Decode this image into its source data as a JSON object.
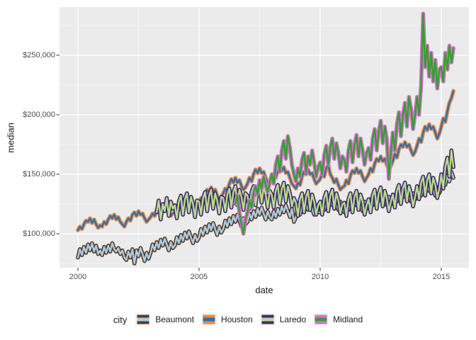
{
  "chart_data": {
    "type": "line",
    "title": "",
    "xlabel": "date",
    "ylabel": "median",
    "x_axis": {
      "ticks": [
        {
          "value": 2000,
          "label": "2000"
        },
        {
          "value": 2005,
          "label": "2005"
        },
        {
          "value": 2010,
          "label": "2010"
        },
        {
          "value": 2015,
          "label": "2015"
        }
      ],
      "minor_ticks": [
        2002.5,
        2007.5,
        2012.5
      ],
      "domain": [
        1999.24,
        2016.14
      ]
    },
    "y_axis": {
      "ticks": [
        {
          "value_kusd": 100,
          "label": "$100,000"
        },
        {
          "value_kusd": 150,
          "label": "$150,000"
        },
        {
          "value_kusd": 200,
          "label": "$200,000"
        },
        {
          "value_kusd": 250,
          "label": "$250,000"
        }
      ],
      "minor_ticks_kusd": [
        75,
        125,
        175,
        225,
        275
      ],
      "domain_kusd": [
        71,
        290
      ]
    },
    "legend": {
      "title": "city",
      "position": "bottom"
    },
    "unit": "values_kusd are monthly median sale price in thousands of USD",
    "frequency": "monthly",
    "series": [
      {
        "name": "Beaumont",
        "line_color": "#A9CFE5",
        "outline_color": "#5A3A25",
        "start_year": 2000.0,
        "values_kusd": [
          80,
          87,
          82,
          89,
          84,
          91,
          86,
          92,
          85,
          90,
          83,
          86,
          82,
          89,
          84,
          90,
          85,
          92,
          87,
          85,
          88,
          83,
          86,
          80,
          78,
          85,
          80,
          87,
          75,
          86,
          81,
          88,
          83,
          77,
          84,
          79,
          84,
          91,
          86,
          93,
          88,
          95,
          90,
          96,
          91,
          86,
          93,
          88,
          90,
          97,
          92,
          99,
          94,
          101,
          96,
          102,
          97,
          92,
          99,
          94,
          97,
          104,
          99,
          106,
          101,
          108,
          103,
          109,
          104,
          99,
          106,
          101,
          104,
          111,
          106,
          113,
          108,
          115,
          110,
          116,
          111,
          106,
          113,
          108,
          110,
          117,
          112,
          119,
          114,
          121,
          116,
          122,
          117,
          112,
          119,
          114,
          112,
          119,
          114,
          121,
          116,
          123,
          118,
          124,
          119,
          114,
          121,
          110,
          114,
          121,
          116,
          123,
          118,
          125,
          120,
          126,
          121,
          116,
          123,
          118,
          118,
          125,
          120,
          127,
          122,
          129,
          124,
          130,
          125,
          120,
          127,
          122,
          118,
          126,
          120,
          128,
          122,
          130,
          124,
          131,
          125,
          119,
          127,
          121,
          122,
          129,
          124,
          131,
          126,
          133,
          128,
          134,
          129,
          124,
          131,
          126,
          125,
          132,
          127,
          134,
          129,
          136,
          131,
          137,
          132,
          127,
          134,
          129,
          130,
          137,
          132,
          139,
          134,
          141,
          136,
          142,
          137,
          132,
          139,
          134,
          138,
          146,
          141,
          149,
          144,
          152,
          147
        ]
      },
      {
        "name": "Houston",
        "line_color": "#2F6FAD",
        "outline_color": "#E68A45",
        "start_year": 2000.0,
        "values_kusd": [
          103,
          106,
          104,
          108,
          111,
          110,
          113,
          109,
          112,
          108,
          105,
          107,
          106,
          110,
          108,
          112,
          115,
          113,
          116,
          112,
          114,
          110,
          108,
          106,
          110,
          113,
          111,
          116,
          118,
          115,
          119,
          116,
          117,
          113,
          110,
          112,
          114,
          117,
          115,
          120,
          123,
          121,
          124,
          120,
          122,
          118,
          115,
          117,
          118,
          122,
          120,
          126,
          129,
          127,
          131,
          127,
          129,
          124,
          121,
          123,
          126,
          130,
          128,
          134,
          137,
          135,
          139,
          135,
          137,
          132,
          129,
          131,
          134,
          138,
          136,
          142,
          146,
          143,
          147,
          143,
          145,
          140,
          137,
          139,
          142,
          147,
          144,
          150,
          154,
          151,
          155,
          151,
          152,
          147,
          143,
          145,
          145,
          150,
          147,
          153,
          156,
          153,
          156,
          151,
          152,
          147,
          142,
          140,
          138,
          143,
          141,
          148,
          152,
          150,
          154,
          150,
          151,
          146,
          142,
          144,
          146,
          151,
          148,
          155,
          158,
          150,
          147,
          143,
          146,
          141,
          137,
          139,
          140,
          145,
          142,
          149,
          153,
          151,
          155,
          151,
          153,
          148,
          144,
          147,
          150,
          155,
          152,
          159,
          163,
          161,
          165,
          161,
          163,
          158,
          154,
          157,
          161,
          167,
          164,
          171,
          175,
          173,
          177,
          173,
          175,
          170,
          166,
          169,
          174,
          180,
          177,
          185,
          190,
          187,
          192,
          188,
          190,
          185,
          180,
          184,
          190,
          197,
          194,
          203,
          210,
          214,
          220
        ]
      },
      {
        "name": "Laredo",
        "line_color": "#B2DF8A",
        "outline_color": "#45276D",
        "start_year": 2003.25,
        "values_kusd": [
          118,
          128,
          112,
          125,
          119,
          130,
          115,
          127,
          121,
          124,
          113,
          127,
          132,
          116,
          129,
          134,
          118,
          131,
          125,
          114,
          128,
          127,
          116,
          130,
          135,
          119,
          132,
          137,
          121,
          134,
          128,
          117,
          131,
          130,
          119,
          133,
          138,
          122,
          135,
          140,
          124,
          137,
          131,
          120,
          134,
          132,
          121,
          135,
          140,
          124,
          137,
          142,
          126,
          139,
          133,
          122,
          136,
          133,
          122,
          136,
          141,
          125,
          138,
          143,
          127,
          140,
          134,
          123,
          130,
          126,
          115,
          129,
          134,
          118,
          131,
          136,
          120,
          133,
          127,
          116,
          124,
          127,
          116,
          130,
          135,
          119,
          132,
          137,
          121,
          134,
          128,
          117,
          125,
          126,
          115,
          129,
          134,
          118,
          131,
          136,
          120,
          133,
          127,
          116,
          124,
          129,
          118,
          132,
          137,
          121,
          134,
          139,
          123,
          136,
          130,
          119,
          127,
          133,
          122,
          136,
          141,
          125,
          138,
          143,
          127,
          140,
          134,
          123,
          131,
          140,
          129,
          143,
          148,
          132,
          145,
          150,
          134,
          147,
          141,
          130,
          138,
          150,
          138,
          156,
          164,
          148,
          170,
          156
        ]
      },
      {
        "name": "Midland",
        "line_color": "#33A02C",
        "outline_color": "#D76ED3",
        "start_year": 2006.5,
        "values_kusd": [
          125,
          132,
          118,
          108,
          100,
          112,
          118,
          128,
          122,
          134,
          140,
          133,
          145,
          138,
          148,
          141,
          135,
          143,
          150,
          142,
          158,
          165,
          152,
          170,
          178,
          163,
          182,
          172,
          158,
          150,
          144,
          155,
          148,
          162,
          168,
          152,
          165,
          158,
          170,
          160,
          148,
          156,
          160,
          150,
          166,
          174,
          158,
          172,
          180,
          163,
          176,
          168,
          155,
          165,
          162,
          152,
          170,
          178,
          160,
          175,
          183,
          165,
          180,
          170,
          158,
          168,
          172,
          162,
          180,
          188,
          170,
          186,
          195,
          176,
          190,
          180,
          146,
          168,
          185,
          170,
          192,
          202,
          182,
          200,
          210,
          190,
          215,
          205,
          188,
          200,
          215,
          200,
          225,
          285,
          240,
          258,
          232,
          252,
          228,
          246,
          222,
          238,
          240,
          228,
          252,
          238,
          258,
          244,
          256
        ]
      }
    ],
    "style": {
      "panel_bg": "#EBEBEB",
      "grid_major": "#FFFFFF",
      "grid_minor_rgba": "rgba(255,255,255,0.55)",
      "tick_mark_color": "#333333",
      "legend_key_bg": "#F2F2F2"
    }
  }
}
